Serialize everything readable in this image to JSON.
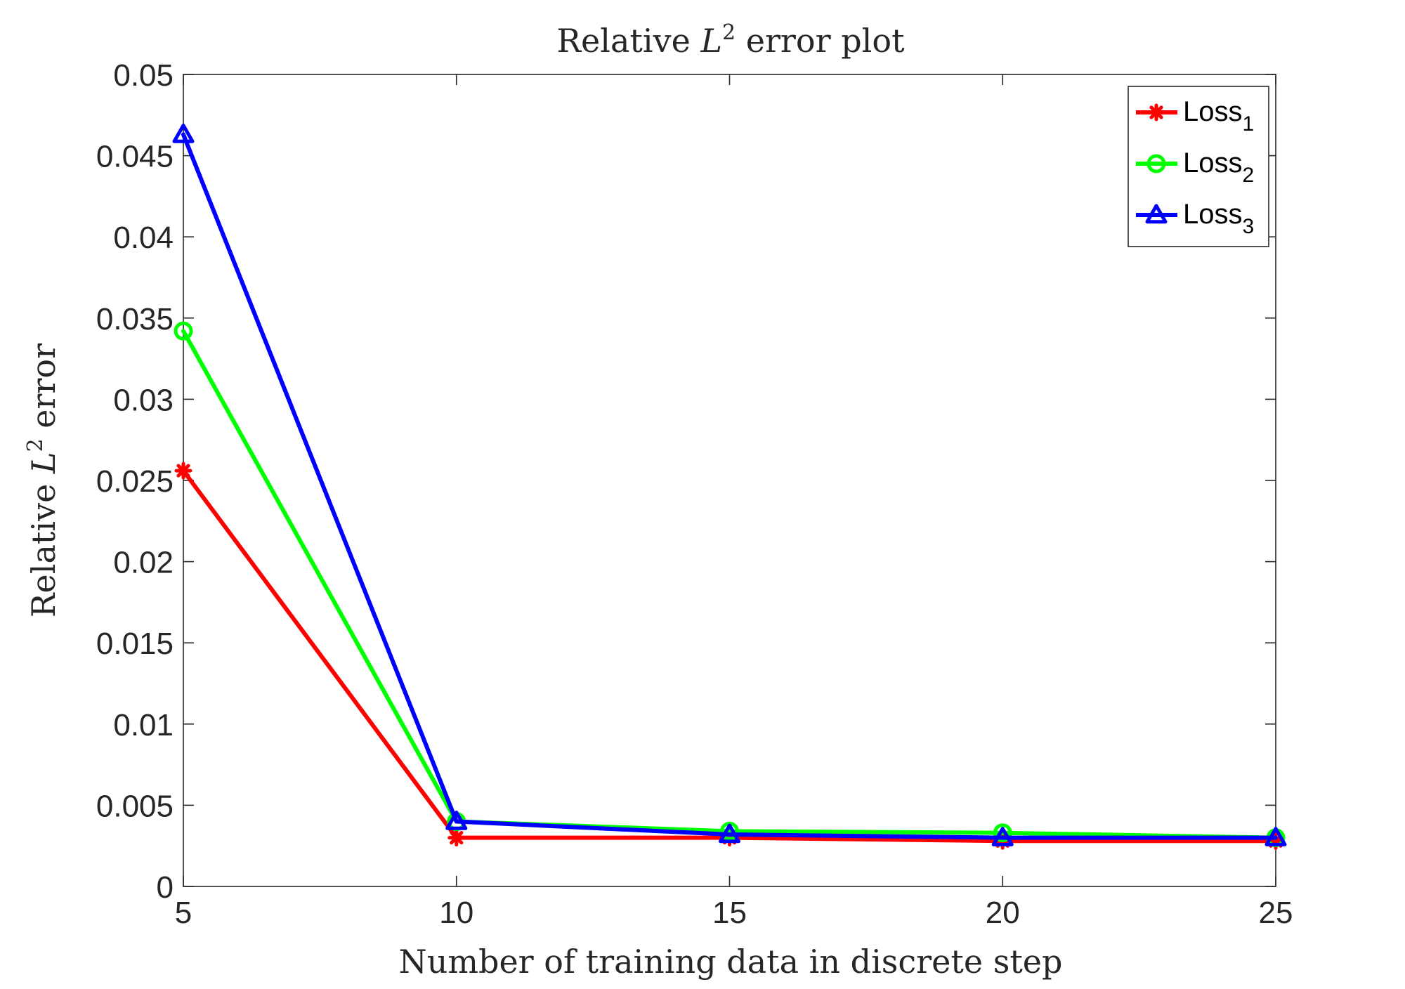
{
  "chart_data": {
    "type": "line",
    "title": {
      "prefix": "Relative ",
      "var": "L",
      "sup": "2",
      "suffix": " error plot"
    },
    "xlabel": "Number of training data in discrete step",
    "ylabel": {
      "prefix": "Relative ",
      "var": "L",
      "sup": "2",
      "suffix": " error"
    },
    "x": [
      5,
      10,
      15,
      20,
      25
    ],
    "xlim": [
      5,
      25
    ],
    "ylim": [
      0,
      0.05
    ],
    "xticks": [
      "5",
      "10",
      "15",
      "20",
      "25"
    ],
    "yticks": [
      "0",
      "0.005",
      "0.01",
      "0.015",
      "0.02",
      "0.025",
      "0.03",
      "0.035",
      "0.04",
      "0.045",
      "0.05"
    ],
    "grid": false,
    "legend_position": "top-right",
    "series": [
      {
        "name": "Loss",
        "subscript": "1",
        "color": "#ff0000",
        "marker": "asterisk",
        "values": [
          0.0256,
          0.003,
          0.003,
          0.0028,
          0.0028
        ]
      },
      {
        "name": "Loss",
        "subscript": "2",
        "color": "#00ff00",
        "marker": "circle",
        "values": [
          0.0342,
          0.004,
          0.0034,
          0.0033,
          0.003
        ]
      },
      {
        "name": "Loss",
        "subscript": "3",
        "color": "#0000ff",
        "marker": "triangle",
        "values": [
          0.0463,
          0.004,
          0.0032,
          0.003,
          0.003
        ]
      }
    ]
  }
}
